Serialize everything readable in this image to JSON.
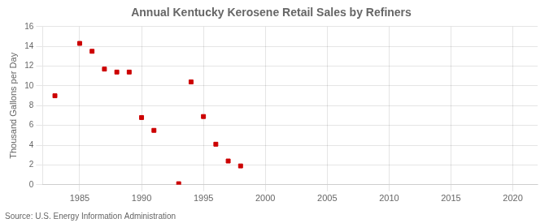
{
  "chart_data": {
    "type": "scatter",
    "title": "Annual Kentucky Kerosene Retail Sales by Refiners",
    "ylabel": "Thousand Gallons per Day",
    "source": "Source: U.S. Energy Information Administration",
    "x": [
      1983,
      1985,
      1986,
      1987,
      1988,
      1989,
      1990,
      1991,
      1993,
      1994,
      1995,
      1996,
      1997,
      1998
    ],
    "values": [
      9.0,
      14.3,
      13.5,
      11.7,
      11.4,
      11.4,
      6.8,
      5.5,
      0.1,
      10.4,
      6.9,
      4.1,
      2.4,
      1.9
    ],
    "color": "#cc0000",
    "marker": "square",
    "xlim": [
      1982,
      2022
    ],
    "ylim": [
      0,
      16
    ],
    "xticks": [
      1985,
      1990,
      1995,
      2000,
      2005,
      2010,
      2015,
      2020
    ],
    "yticks": [
      0,
      2,
      4,
      6,
      8,
      10,
      12,
      14,
      16
    ],
    "grid": true
  }
}
